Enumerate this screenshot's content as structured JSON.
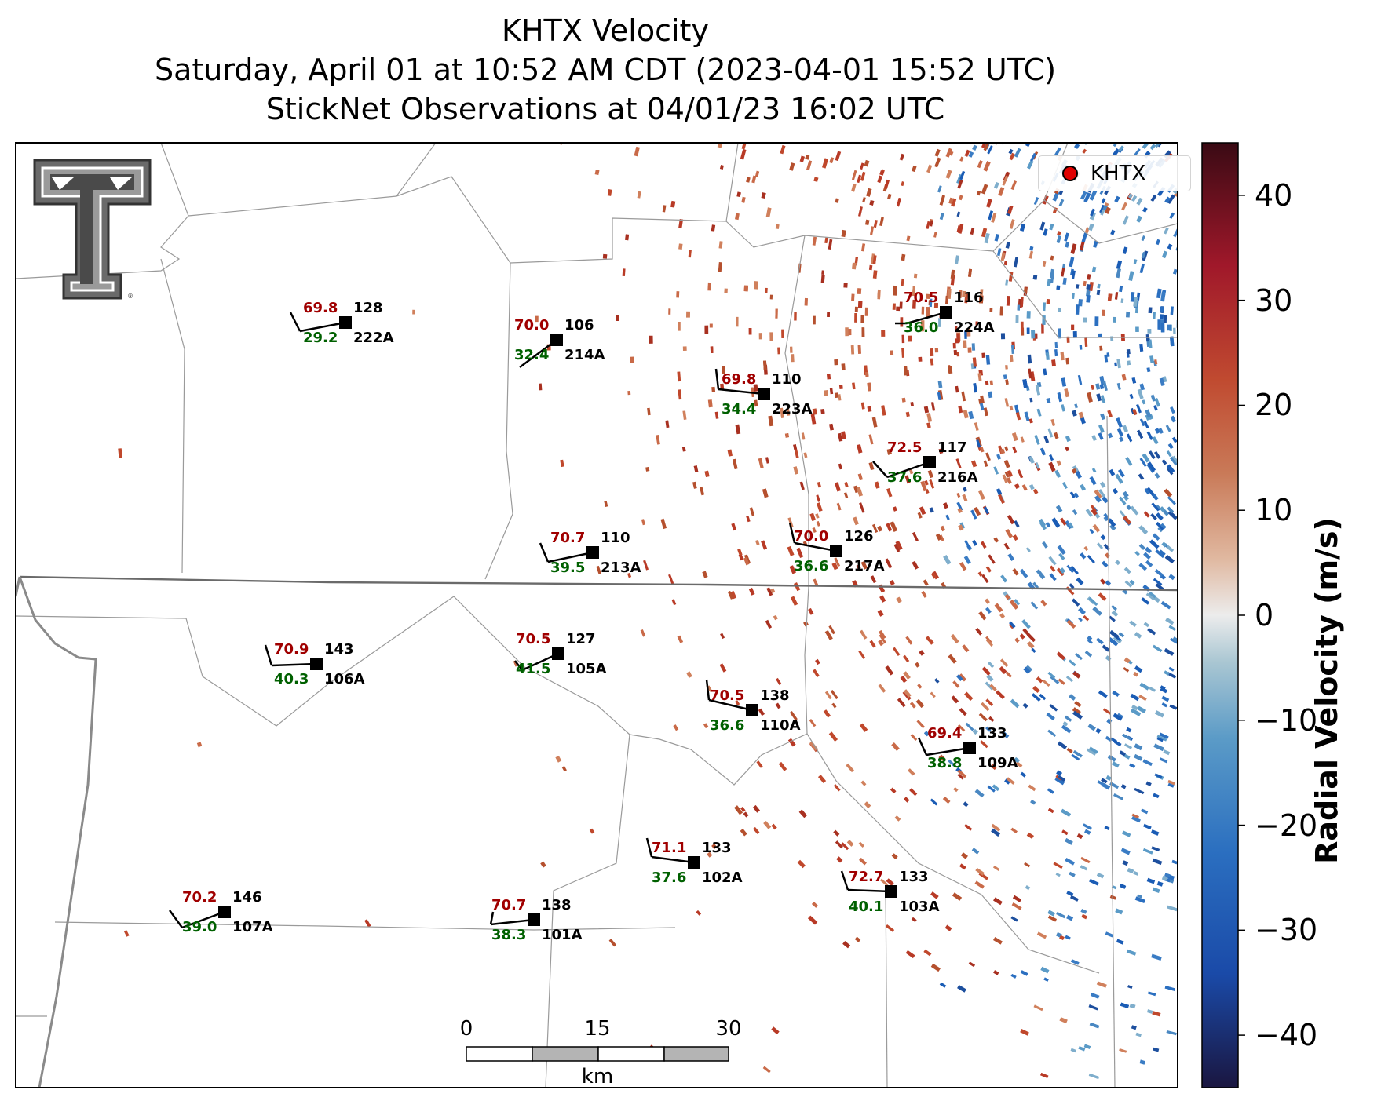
{
  "title_lines": [
    "KHTX Velocity",
    "Saturday, April 01 at 10:52 AM CDT (2023-04-01 15:52 UTC)",
    "StickNet Observations at 04/01/23 16:02 UTC"
  ],
  "legend": {
    "label": "KHTX",
    "marker_color": "#e00000"
  },
  "colorbar": {
    "label": "Radial Velocity (m/s)",
    "ticks": [
      "40",
      "30",
      "20",
      "10",
      "0",
      "−10",
      "−20",
      "−30",
      "−40"
    ],
    "range": [
      -45,
      45
    ],
    "colors": [
      "#1a1640",
      "#1a4aa8",
      "#2b6fc0",
      "#4d8fc3",
      "#8bb2c8",
      "#e8e8e8",
      "#d9a58a",
      "#c05a38",
      "#a0182a",
      "#3a0a14"
    ]
  },
  "scale_bar": {
    "ticks": [
      "0",
      "15",
      "30"
    ],
    "unit": "km"
  },
  "logo_icon": "texas-tech-double-t-logo",
  "stations": [
    {
      "id": "222A",
      "temp": "69.8",
      "dir": "128",
      "dew": "29.2"
    },
    {
      "id": "214A",
      "temp": "70.0",
      "dir": "106",
      "dew": "32.4"
    },
    {
      "id": "223A",
      "temp": "69.8",
      "dir": "110",
      "dew": "34.4"
    },
    {
      "id": "224A",
      "temp": "70.5",
      "dir": "116",
      "dew": "36.0"
    },
    {
      "id": "216A",
      "temp": "72.5",
      "dir": "117",
      "dew": "37.6"
    },
    {
      "id": "213A",
      "temp": "70.7",
      "dir": "110",
      "dew": "39.5"
    },
    {
      "id": "217A",
      "temp": "70.0",
      "dir": "126",
      "dew": "36.6"
    },
    {
      "id": "106A",
      "temp": "70.9",
      "dir": "143",
      "dew": "40.3"
    },
    {
      "id": "105A",
      "temp": "70.5",
      "dir": "127",
      "dew": "41.5"
    },
    {
      "id": "110A",
      "temp": "70.5",
      "dir": "138",
      "dew": "36.6"
    },
    {
      "id": "109A",
      "temp": "69.4",
      "dir": "133",
      "dew": "38.8"
    },
    {
      "id": "102A",
      "temp": "71.1",
      "dir": "133",
      "dew": "37.6"
    },
    {
      "id": "103A",
      "temp": "72.7",
      "dir": "133",
      "dew": "40.1"
    },
    {
      "id": "107A",
      "temp": "70.2",
      "dir": "146",
      "dew": "39.0"
    },
    {
      "id": "101A",
      "temp": "70.7",
      "dir": "138",
      "dew": "38.3"
    }
  ]
}
